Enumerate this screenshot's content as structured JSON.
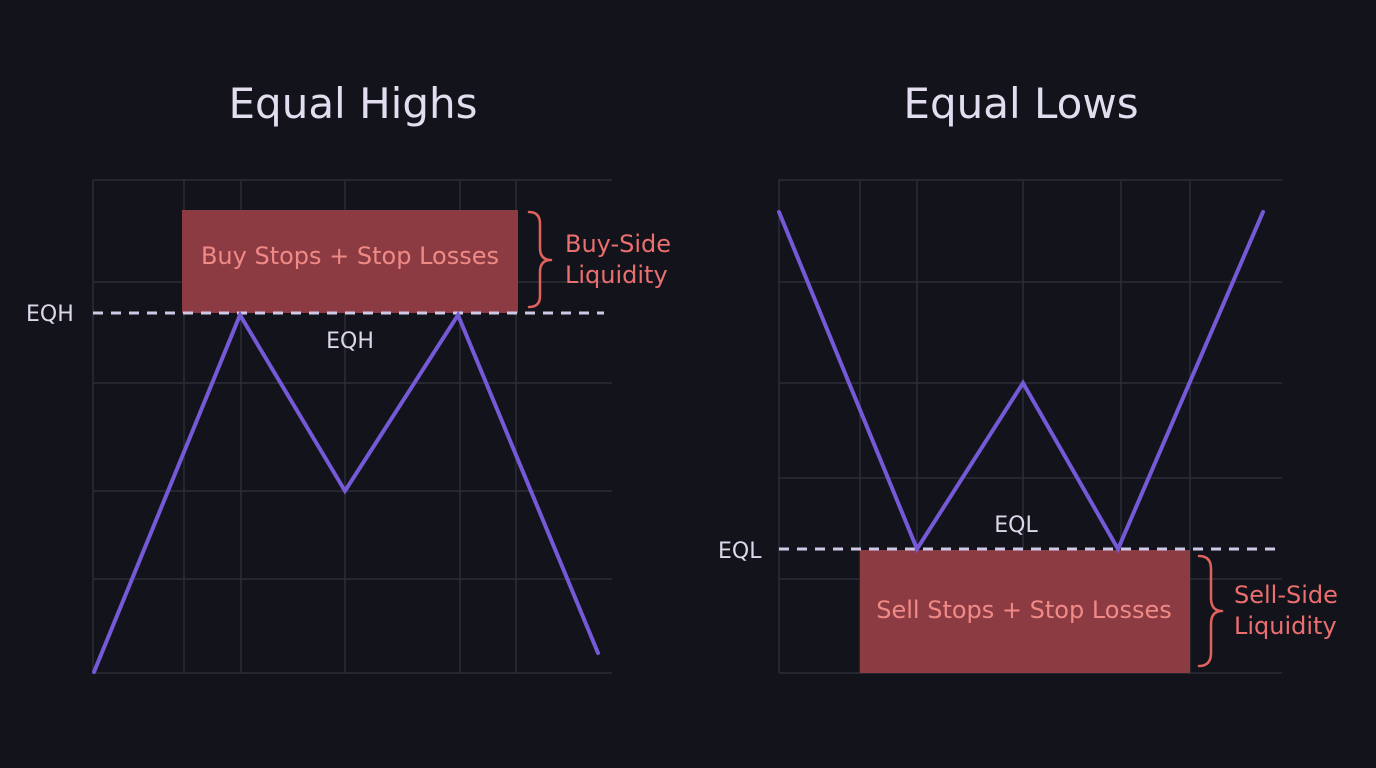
{
  "panels": {
    "highs": {
      "title": "Equal Highs",
      "level_tag": "EQH",
      "level_label": "EQH",
      "zone_label": "Buy Stops + Stop Losses",
      "side_label_line1": "Buy-Side",
      "side_label_line2": "Liquidity"
    },
    "lows": {
      "title": "Equal Lows",
      "level_tag": "EQL",
      "level_label": "EQL",
      "zone_label": "Sell Stops + Stop Losses",
      "side_label_line1": "Sell-Side",
      "side_label_line2": "Liquidity"
    }
  },
  "colors": {
    "background": "#13131b",
    "price_line": "#7659d6",
    "liquidity_zone": "#8d3b43",
    "liquidity_text": "#f08a86",
    "level_line": "#cfc8e6"
  }
}
